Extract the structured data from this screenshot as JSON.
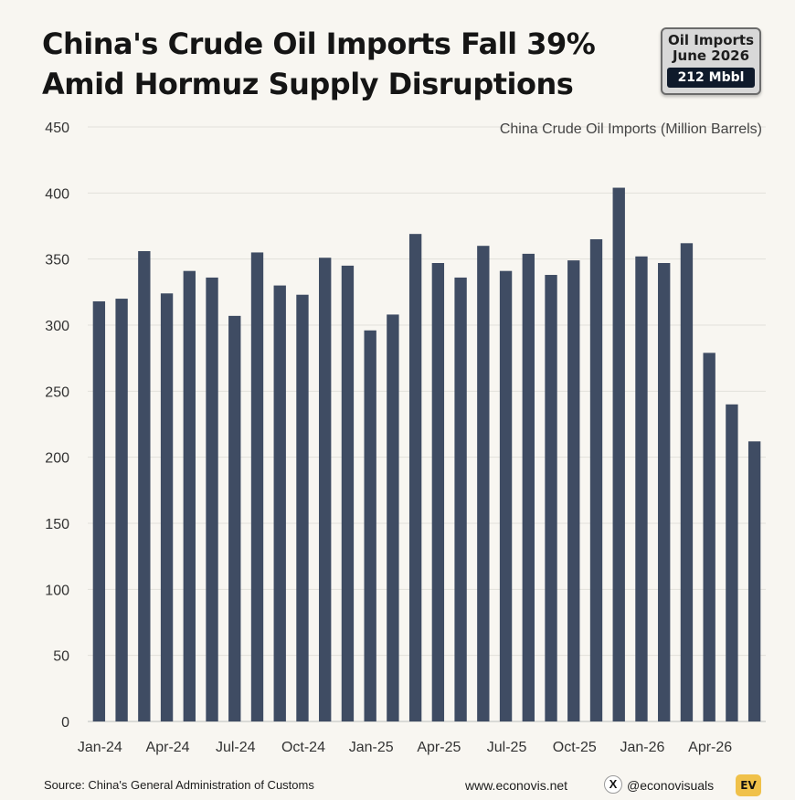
{
  "header": {
    "title_line1": "China's Crude Oil Imports Fall 39%",
    "title_line2": "Amid Hormuz Supply Disruptions"
  },
  "badge": {
    "line1": "Oil Imports",
    "line2": "June 2026",
    "value": "212 Mbbl"
  },
  "chart_data": {
    "type": "bar",
    "title": "China Crude Oil Imports (Million Barrels)",
    "xlabel": "",
    "ylabel": "",
    "ylim": [
      0,
      450
    ],
    "yticks": [
      0,
      50,
      100,
      150,
      200,
      250,
      300,
      350,
      400,
      450
    ],
    "grid": true,
    "bar_color": "#3f4c63",
    "categories": [
      "Jan-24",
      "Feb-24",
      "Mar-24",
      "Apr-24",
      "May-24",
      "Jun-24",
      "Jul-24",
      "Aug-24",
      "Sep-24",
      "Oct-24",
      "Nov-24",
      "Dec-24",
      "Jan-25",
      "Feb-25",
      "Mar-25",
      "Apr-25",
      "May-25",
      "Jun-25",
      "Jul-25",
      "Aug-25",
      "Sep-25",
      "Oct-25",
      "Nov-25",
      "Dec-25",
      "Jan-26",
      "Feb-26",
      "Mar-26",
      "Apr-26",
      "May-26",
      "Jun-26"
    ],
    "tick_labels": [
      "Jan-24",
      "Apr-24",
      "Jul-24",
      "Oct-24",
      "Jan-25",
      "Apr-25",
      "Jul-25",
      "Oct-25",
      "Jan-26",
      "Apr-26"
    ],
    "values": [
      318,
      320,
      356,
      324,
      341,
      336,
      307,
      355,
      330,
      323,
      351,
      345,
      296,
      308,
      369,
      347,
      336,
      360,
      341,
      354,
      338,
      349,
      365,
      404,
      352,
      347,
      362,
      279,
      240,
      212
    ]
  },
  "footer": {
    "source": "Source: China's General Administration of Customs",
    "website": "www.econovis.net",
    "x_icon_glyph": "X",
    "handle": "@econovisuals",
    "logo_text": "EV"
  }
}
